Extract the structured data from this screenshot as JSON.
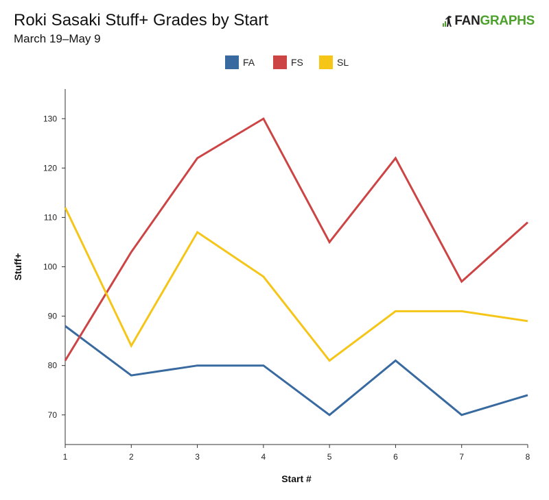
{
  "header": {
    "title": "Roki Sasaki Stuff+ Grades by Start",
    "subtitle": "March 19–May 9",
    "logo_fan": "FAN",
    "logo_graphs": "GRAPHS"
  },
  "chart_data": {
    "type": "line",
    "title": "Roki Sasaki Stuff+ Grades by Start",
    "subtitle": "March 19–May 9",
    "xlabel": "Start #",
    "ylabel": "Stuff+",
    "x": [
      1,
      2,
      3,
      4,
      5,
      6,
      7,
      8
    ],
    "xlim": [
      1,
      8
    ],
    "ylim": [
      64,
      136
    ],
    "yticks": [
      70,
      80,
      90,
      100,
      110,
      120,
      130
    ],
    "grid": false,
    "legend_position": "top-center",
    "series": [
      {
        "name": "FA",
        "color": "#386aa0",
        "values": [
          88,
          78,
          80,
          80,
          70,
          81,
          70,
          74
        ]
      },
      {
        "name": "FS",
        "color": "#cc4444",
        "values": [
          81,
          103,
          122,
          130,
          105,
          122,
          97,
          109
        ]
      },
      {
        "name": "SL",
        "color": "#f5c518",
        "values": [
          112,
          84,
          107,
          98,
          81,
          91,
          91,
          89
        ]
      }
    ]
  }
}
